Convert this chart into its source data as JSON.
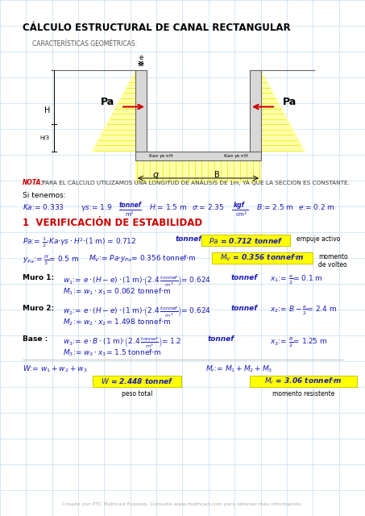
{
  "title": "CÁLCULO ESTRUCTURAL DE CANAL RECTANGULAR",
  "subtitle": "CARACTERÍSTICAS GEOMÉTRICAS:",
  "note_label": "NOTA:",
  "note_text": " PARA EL CÁLCULO UTILIZAMOS UNA LONGITUD DE ANÁLISIS DE 1m, YA QUE LA SECCIÓN ES CONSTANTE.",
  "section1_title": "1  VERIFICACIÓN DE ESTABILIDAD",
  "footer": "Creado con PTC Mathcad Express. Consulte www.mathcad.com para obtener más información.",
  "bg_color": "#ffffff",
  "grid_color": "#b8d4e8",
  "title_color": "#000000",
  "red_color": "#cc0000",
  "blue_color": "#1a1ab5",
  "black_color": "#111111",
  "yellow_color": "#ffff00",
  "yellow_border": "#cccc00",
  "wall_face": "#d8d8d8",
  "wall_edge": "#666666",
  "press_yellow": "#ffffaa",
  "press_line": "#e8e800"
}
